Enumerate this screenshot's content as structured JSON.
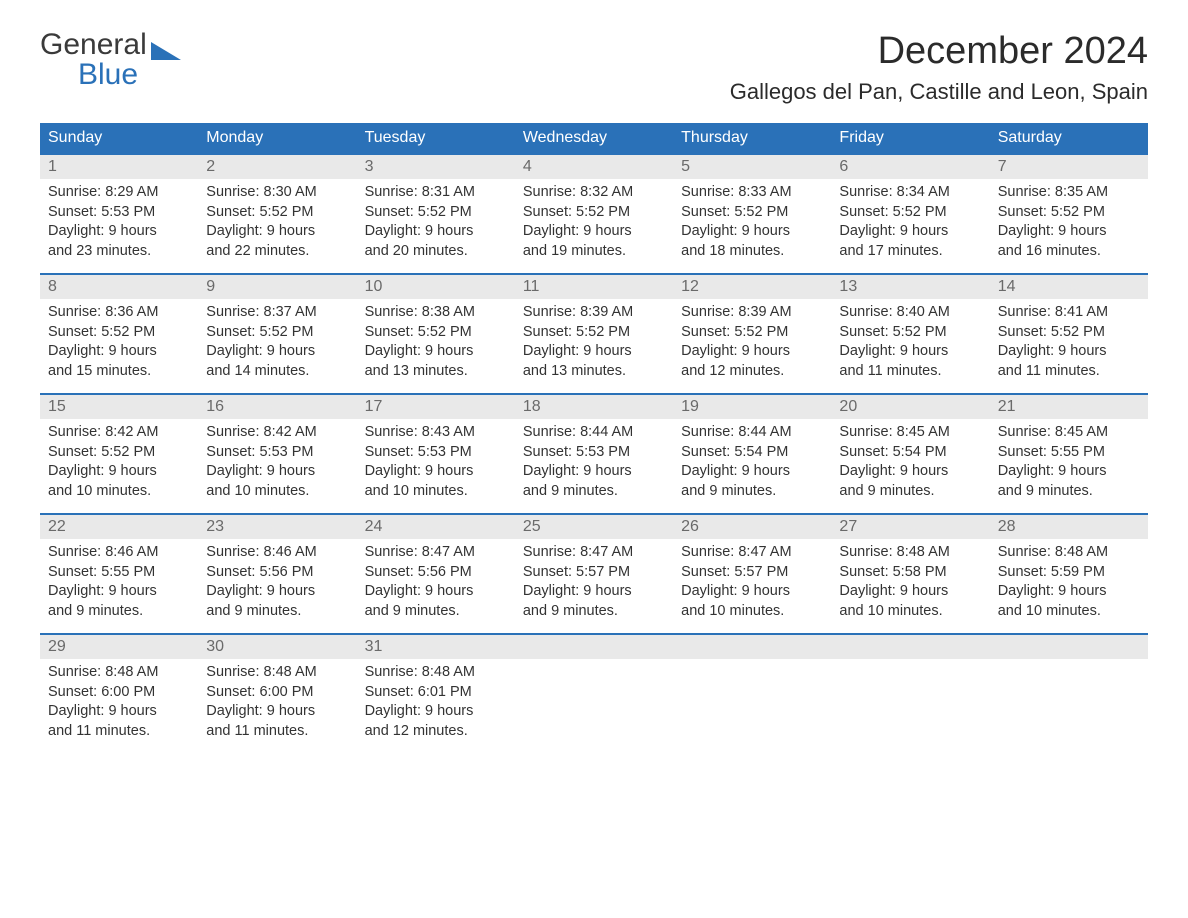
{
  "brand": {
    "word1": "General",
    "word2": "Blue"
  },
  "title": "December 2024",
  "location": "Gallegos del Pan, Castille and Leon, Spain",
  "colors": {
    "header_blue": "#2a71b8",
    "daynum_bg": "#e9e9e9",
    "daynum_text": "#6a6a6a",
    "body_text": "#333333",
    "title_text": "#2b2b2b",
    "logo_gray": "#3a3a3a",
    "background": "#ffffff"
  },
  "layout": {
    "type": "calendar",
    "columns": 7,
    "rows": 5,
    "month_title_fontsize": 38,
    "location_fontsize": 22,
    "dow_fontsize": 16,
    "daynum_fontsize": 16,
    "content_fontsize": 14.5
  },
  "days_of_week": [
    "Sunday",
    "Monday",
    "Tuesday",
    "Wednesday",
    "Thursday",
    "Friday",
    "Saturday"
  ],
  "weeks": [
    [
      {
        "n": "1",
        "sunrise": "Sunrise: 8:29 AM",
        "sunset": "Sunset: 5:53 PM",
        "d1": "Daylight: 9 hours",
        "d2": "and 23 minutes."
      },
      {
        "n": "2",
        "sunrise": "Sunrise: 8:30 AM",
        "sunset": "Sunset: 5:52 PM",
        "d1": "Daylight: 9 hours",
        "d2": "and 22 minutes."
      },
      {
        "n": "3",
        "sunrise": "Sunrise: 8:31 AM",
        "sunset": "Sunset: 5:52 PM",
        "d1": "Daylight: 9 hours",
        "d2": "and 20 minutes."
      },
      {
        "n": "4",
        "sunrise": "Sunrise: 8:32 AM",
        "sunset": "Sunset: 5:52 PM",
        "d1": "Daylight: 9 hours",
        "d2": "and 19 minutes."
      },
      {
        "n": "5",
        "sunrise": "Sunrise: 8:33 AM",
        "sunset": "Sunset: 5:52 PM",
        "d1": "Daylight: 9 hours",
        "d2": "and 18 minutes."
      },
      {
        "n": "6",
        "sunrise": "Sunrise: 8:34 AM",
        "sunset": "Sunset: 5:52 PM",
        "d1": "Daylight: 9 hours",
        "d2": "and 17 minutes."
      },
      {
        "n": "7",
        "sunrise": "Sunrise: 8:35 AM",
        "sunset": "Sunset: 5:52 PM",
        "d1": "Daylight: 9 hours",
        "d2": "and 16 minutes."
      }
    ],
    [
      {
        "n": "8",
        "sunrise": "Sunrise: 8:36 AM",
        "sunset": "Sunset: 5:52 PM",
        "d1": "Daylight: 9 hours",
        "d2": "and 15 minutes."
      },
      {
        "n": "9",
        "sunrise": "Sunrise: 8:37 AM",
        "sunset": "Sunset: 5:52 PM",
        "d1": "Daylight: 9 hours",
        "d2": "and 14 minutes."
      },
      {
        "n": "10",
        "sunrise": "Sunrise: 8:38 AM",
        "sunset": "Sunset: 5:52 PM",
        "d1": "Daylight: 9 hours",
        "d2": "and 13 minutes."
      },
      {
        "n": "11",
        "sunrise": "Sunrise: 8:39 AM",
        "sunset": "Sunset: 5:52 PM",
        "d1": "Daylight: 9 hours",
        "d2": "and 13 minutes."
      },
      {
        "n": "12",
        "sunrise": "Sunrise: 8:39 AM",
        "sunset": "Sunset: 5:52 PM",
        "d1": "Daylight: 9 hours",
        "d2": "and 12 minutes."
      },
      {
        "n": "13",
        "sunrise": "Sunrise: 8:40 AM",
        "sunset": "Sunset: 5:52 PM",
        "d1": "Daylight: 9 hours",
        "d2": "and 11 minutes."
      },
      {
        "n": "14",
        "sunrise": "Sunrise: 8:41 AM",
        "sunset": "Sunset: 5:52 PM",
        "d1": "Daylight: 9 hours",
        "d2": "and 11 minutes."
      }
    ],
    [
      {
        "n": "15",
        "sunrise": "Sunrise: 8:42 AM",
        "sunset": "Sunset: 5:52 PM",
        "d1": "Daylight: 9 hours",
        "d2": "and 10 minutes."
      },
      {
        "n": "16",
        "sunrise": "Sunrise: 8:42 AM",
        "sunset": "Sunset: 5:53 PM",
        "d1": "Daylight: 9 hours",
        "d2": "and 10 minutes."
      },
      {
        "n": "17",
        "sunrise": "Sunrise: 8:43 AM",
        "sunset": "Sunset: 5:53 PM",
        "d1": "Daylight: 9 hours",
        "d2": "and 10 minutes."
      },
      {
        "n": "18",
        "sunrise": "Sunrise: 8:44 AM",
        "sunset": "Sunset: 5:53 PM",
        "d1": "Daylight: 9 hours",
        "d2": "and 9 minutes."
      },
      {
        "n": "19",
        "sunrise": "Sunrise: 8:44 AM",
        "sunset": "Sunset: 5:54 PM",
        "d1": "Daylight: 9 hours",
        "d2": "and 9 minutes."
      },
      {
        "n": "20",
        "sunrise": "Sunrise: 8:45 AM",
        "sunset": "Sunset: 5:54 PM",
        "d1": "Daylight: 9 hours",
        "d2": "and 9 minutes."
      },
      {
        "n": "21",
        "sunrise": "Sunrise: 8:45 AM",
        "sunset": "Sunset: 5:55 PM",
        "d1": "Daylight: 9 hours",
        "d2": "and 9 minutes."
      }
    ],
    [
      {
        "n": "22",
        "sunrise": "Sunrise: 8:46 AM",
        "sunset": "Sunset: 5:55 PM",
        "d1": "Daylight: 9 hours",
        "d2": "and 9 minutes."
      },
      {
        "n": "23",
        "sunrise": "Sunrise: 8:46 AM",
        "sunset": "Sunset: 5:56 PM",
        "d1": "Daylight: 9 hours",
        "d2": "and 9 minutes."
      },
      {
        "n": "24",
        "sunrise": "Sunrise: 8:47 AM",
        "sunset": "Sunset: 5:56 PM",
        "d1": "Daylight: 9 hours",
        "d2": "and 9 minutes."
      },
      {
        "n": "25",
        "sunrise": "Sunrise: 8:47 AM",
        "sunset": "Sunset: 5:57 PM",
        "d1": "Daylight: 9 hours",
        "d2": "and 9 minutes."
      },
      {
        "n": "26",
        "sunrise": "Sunrise: 8:47 AM",
        "sunset": "Sunset: 5:57 PM",
        "d1": "Daylight: 9 hours",
        "d2": "and 10 minutes."
      },
      {
        "n": "27",
        "sunrise": "Sunrise: 8:48 AM",
        "sunset": "Sunset: 5:58 PM",
        "d1": "Daylight: 9 hours",
        "d2": "and 10 minutes."
      },
      {
        "n": "28",
        "sunrise": "Sunrise: 8:48 AM",
        "sunset": "Sunset: 5:59 PM",
        "d1": "Daylight: 9 hours",
        "d2": "and 10 minutes."
      }
    ],
    [
      {
        "n": "29",
        "sunrise": "Sunrise: 8:48 AM",
        "sunset": "Sunset: 6:00 PM",
        "d1": "Daylight: 9 hours",
        "d2": "and 11 minutes."
      },
      {
        "n": "30",
        "sunrise": "Sunrise: 8:48 AM",
        "sunset": "Sunset: 6:00 PM",
        "d1": "Daylight: 9 hours",
        "d2": "and 11 minutes."
      },
      {
        "n": "31",
        "sunrise": "Sunrise: 8:48 AM",
        "sunset": "Sunset: 6:01 PM",
        "d1": "Daylight: 9 hours",
        "d2": "and 12 minutes."
      },
      {
        "empty": true
      },
      {
        "empty": true
      },
      {
        "empty": true
      },
      {
        "empty": true
      }
    ]
  ]
}
